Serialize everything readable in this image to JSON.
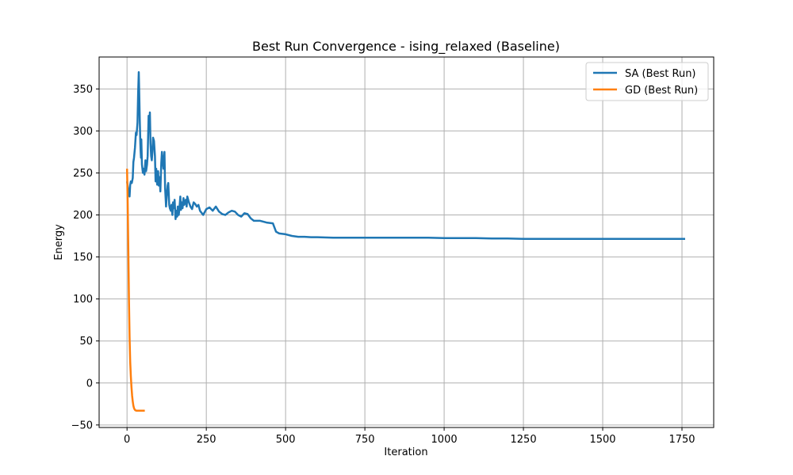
{
  "chart_data": {
    "type": "line",
    "title": "Best Run Convergence - ising_relaxed (Baseline)",
    "xlabel": "Iteration",
    "ylabel": "Energy",
    "xlim": [
      -88,
      1850
    ],
    "ylim": [
      -53,
      388
    ],
    "xticks": [
      0,
      250,
      500,
      750,
      1000,
      1250,
      1500,
      1750
    ],
    "yticks": [
      -50,
      0,
      50,
      100,
      150,
      200,
      250,
      300,
      350
    ],
    "grid": true,
    "legend_position": "top-right",
    "series": [
      {
        "name": "SA (Best Run)",
        "color": "#1f77b4",
        "x": [
          0,
          3,
          5,
          8,
          10,
          12,
          15,
          18,
          20,
          22,
          25,
          28,
          30,
          33,
          35,
          37,
          39,
          40,
          41,
          42,
          43,
          44,
          45,
          47,
          50,
          52,
          55,
          58,
          60,
          63,
          65,
          68,
          70,
          72,
          74,
          76,
          78,
          80,
          82,
          85,
          88,
          90,
          92,
          95,
          98,
          100,
          103,
          105,
          108,
          110,
          113,
          115,
          118,
          120,
          123,
          125,
          128,
          130,
          133,
          135,
          138,
          140,
          143,
          145,
          148,
          150,
          153,
          155,
          158,
          160,
          163,
          165,
          168,
          170,
          173,
          175,
          178,
          180,
          183,
          185,
          188,
          190,
          195,
          200,
          205,
          210,
          215,
          220,
          225,
          230,
          240,
          250,
          260,
          270,
          280,
          290,
          300,
          310,
          320,
          330,
          340,
          350,
          360,
          370,
          380,
          390,
          400,
          420,
          440,
          460,
          470,
          480,
          500,
          520,
          540,
          560,
          580,
          600,
          650,
          700,
          750,
          800,
          850,
          900,
          950,
          1000,
          1050,
          1100,
          1150,
          1200,
          1250,
          1300,
          1350,
          1400,
          1450,
          1500,
          1550,
          1600,
          1650,
          1700,
          1760
        ],
        "y": [
          240,
          232,
          225,
          222,
          236,
          240,
          238,
          244,
          263,
          268,
          280,
          298,
          295,
          310,
          345,
          370,
          335,
          315,
          300,
          285,
          275,
          268,
          290,
          260,
          250,
          255,
          248,
          265,
          252,
          260,
          270,
          318,
          300,
          322,
          285,
          270,
          265,
          275,
          292,
          288,
          270,
          240,
          255,
          236,
          252,
          235,
          245,
          228,
          262,
          275,
          262,
          255,
          275,
          232,
          210,
          222,
          235,
          238,
          212,
          208,
          205,
          212,
          200,
          215,
          208,
          218,
          195,
          205,
          198,
          210,
          200,
          207,
          222,
          206,
          215,
          208,
          220,
          212,
          215,
          218,
          210,
          222,
          215,
          210,
          207,
          215,
          213,
          210,
          212,
          205,
          200,
          207,
          209,
          205,
          210,
          204,
          201,
          200,
          203,
          205,
          204,
          200,
          198,
          202,
          201,
          196,
          193,
          193,
          191,
          190,
          180,
          178,
          177,
          175,
          174,
          174,
          173.5,
          173.5,
          173,
          173,
          173,
          173,
          173,
          173,
          173,
          172.5,
          172.5,
          172.5,
          172,
          172,
          171.5,
          171.5,
          171.5,
          171.5,
          171.5,
          171.5,
          171.5,
          171.5,
          171.5,
          171.5,
          171.5
        ]
      },
      {
        "name": "GD (Best Run)",
        "color": "#ff7f0e",
        "x": [
          0,
          2,
          4,
          6,
          8,
          10,
          12,
          14,
          16,
          18,
          20,
          22,
          24,
          26,
          30,
          35,
          40,
          45,
          50,
          56
        ],
        "y": [
          255,
          215,
          160,
          100,
          55,
          25,
          8,
          -5,
          -15,
          -22,
          -27,
          -30,
          -31.5,
          -32.5,
          -33,
          -33,
          -33,
          -33,
          -33,
          -33
        ]
      }
    ]
  }
}
